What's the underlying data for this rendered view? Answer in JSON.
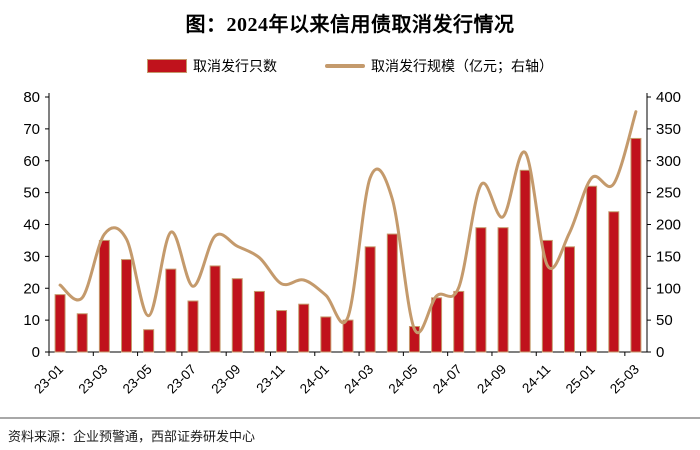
{
  "title": "图：2024年以来信用债取消发行情况",
  "legend": {
    "items": [
      {
        "label": "取消发行只数",
        "type": "bar"
      },
      {
        "label": "取消发行规模（亿元；右轴）",
        "type": "line"
      }
    ]
  },
  "footer": {
    "source": "资料来源：企业预警通，西部证券研发中心"
  },
  "colors": {
    "bar_fill": "#c0121c",
    "bar_border": "#c49a6c",
    "line": "#c49a6c",
    "axis": "#000000",
    "separator": "#a8a8a8"
  },
  "chart_data": {
    "type": "bar",
    "title": "图：2024年以来信用债取消发行情况",
    "categories": [
      "23-01",
      "23-02",
      "23-03",
      "23-04",
      "23-05",
      "23-06",
      "23-07",
      "23-08",
      "23-09",
      "23-10",
      "23-11",
      "23-12",
      "24-01",
      "24-02",
      "24-03",
      "24-04",
      "24-05",
      "24-06",
      "24-07",
      "24-08",
      "24-09",
      "24-10",
      "24-11",
      "24-12",
      "25-01",
      "25-02",
      "25-03"
    ],
    "x_tick_labels": [
      "23-01",
      "23-03",
      "23-05",
      "23-07",
      "23-09",
      "23-11",
      "24-01",
      "24-03",
      "24-05",
      "24-07",
      "24-09",
      "24-11",
      "25-01",
      "25-03"
    ],
    "series": [
      {
        "name": "取消发行只数",
        "type": "bar",
        "axis": "left",
        "values": [
          18,
          12,
          35,
          29,
          7,
          26,
          16,
          27,
          23,
          19,
          13,
          15,
          11,
          10,
          33,
          37,
          8,
          17,
          19,
          39,
          39,
          57,
          35,
          33,
          52,
          44,
          67
        ]
      },
      {
        "name": "取消发行规模（亿元；右轴）",
        "type": "line",
        "axis": "right",
        "values": [
          105,
          85,
          185,
          177,
          57,
          188,
          103,
          182,
          166,
          148,
          107,
          113,
          89,
          55,
          273,
          240,
          36,
          88,
          101,
          262,
          212,
          313,
          136,
          187,
          273,
          264,
          377
        ]
      }
    ],
    "left_axis": {
      "min": 0,
      "max": 80,
      "step": 10
    },
    "right_axis": {
      "min": 0,
      "max": 400,
      "step": 50
    },
    "grid": false,
    "legend_position": "top"
  }
}
